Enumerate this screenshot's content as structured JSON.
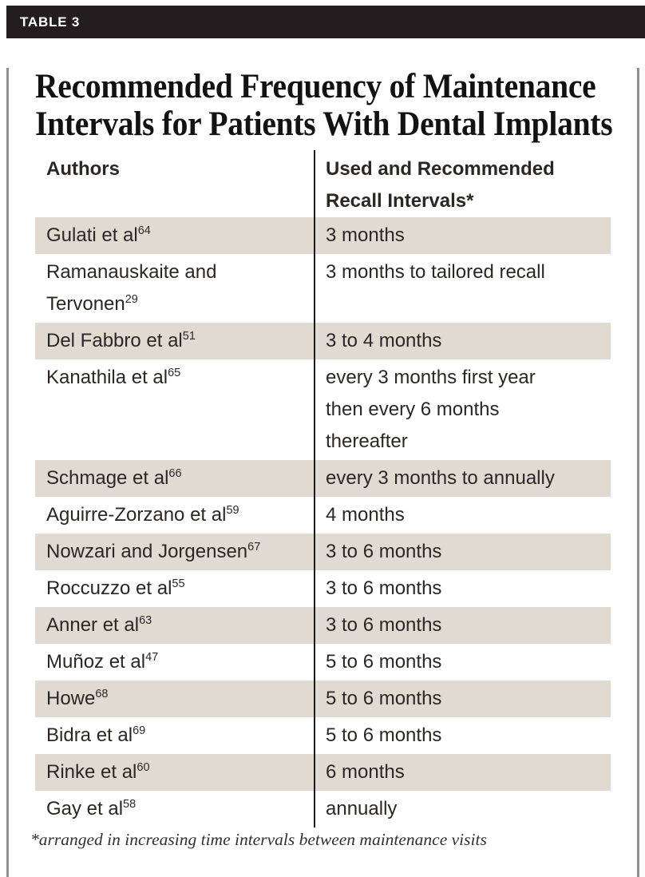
{
  "tag": "TABLE 3",
  "title_lines": [
    "Recommended Frequency of Maintenance",
    "Intervals for Patients With Dental Implants"
  ],
  "table": {
    "columns": [
      "Authors",
      "Used and Recommended Recall Intervals*"
    ],
    "rows": [
      {
        "author": "Gulati et al",
        "ref": "64",
        "interval": "3 months",
        "shaded": true
      },
      {
        "author": "Ramanauskaite and Tervonen",
        "ref": "29",
        "interval": "3 months to tailored recall",
        "shaded": false
      },
      {
        "author": "Del Fabbro et al",
        "ref": "51",
        "interval": "3 to 4 months",
        "shaded": true
      },
      {
        "author": "Kanathila et al",
        "ref": "65",
        "interval": "every 3 months first year then every 6 months thereafter",
        "shaded": false
      },
      {
        "author": "Schmage et al",
        "ref": "66",
        "interval": "every 3 months to annually",
        "shaded": true
      },
      {
        "author": "Aguirre-Zorzano et al",
        "ref": "59",
        "interval": "4 months",
        "shaded": false
      },
      {
        "author": "Nowzari and Jorgensen",
        "ref": "67",
        "interval": "3 to 6 months",
        "shaded": true
      },
      {
        "author": "Roccuzzo et al",
        "ref": "55",
        "interval": "3 to 6 months",
        "shaded": false
      },
      {
        "author": "Anner et al",
        "ref": "63",
        "interval": "3 to 6 months",
        "shaded": true
      },
      {
        "author": "Muñoz et al",
        "ref": "47",
        "interval": "5 to 6 months",
        "shaded": false
      },
      {
        "author": "Howe",
        "ref": "68",
        "interval": "5 to 6 months",
        "shaded": true
      },
      {
        "author": "Bidra et al",
        "ref": "69",
        "interval": "5 to 6 months",
        "shaded": false
      },
      {
        "author": "Rinke et al",
        "ref": "60",
        "interval": "6 months",
        "shaded": true
      },
      {
        "author": "Gay et al",
        "ref": "58",
        "interval": "annually",
        "shaded": false
      }
    ]
  },
  "footnote": "*arranged in increasing time intervals between maintenance visits",
  "colors": {
    "tag_bar": "#221e1f",
    "row_shade": "#e0dad3",
    "panel_border": "#909195",
    "column_divider": "#1c1c1c",
    "body_text": "#2b2725"
  }
}
